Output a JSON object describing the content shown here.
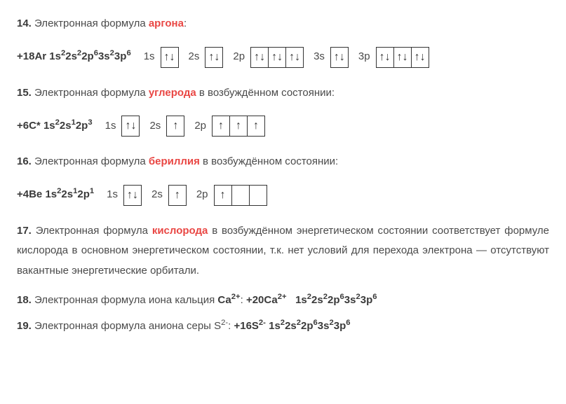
{
  "q14": {
    "num": "14.",
    "pre": " Электронная формула ",
    "hl": "аргона",
    "post": ":",
    "cfg_pre": "+18Ar 1s",
    "cfg_rest": [
      "2",
      "2s",
      "2",
      "2p",
      "6",
      "3s",
      "2",
      "3p",
      "6"
    ],
    "labels": [
      "1s",
      "2s",
      "2p",
      "3s",
      "3p"
    ],
    "orbitals": [
      [
        [
          "↑",
          "↓"
        ]
      ],
      [
        [
          "↑",
          "↓"
        ]
      ],
      [
        [
          "↑",
          "↓"
        ],
        [
          "↑",
          "↓"
        ],
        [
          "↑",
          "↓"
        ]
      ],
      [
        [
          "↑",
          "↓"
        ]
      ],
      [
        [
          "↑",
          "↓"
        ],
        [
          "↑",
          "↓"
        ],
        [
          "↑",
          "↓"
        ]
      ]
    ]
  },
  "q15": {
    "num": "15.",
    "pre": " Электронная формула ",
    "hl": "углерода",
    "post": " в возбуждённом состоянии:",
    "cfg_pre": "+6C* 1s",
    "cfg_rest": [
      "2",
      "2s",
      "1",
      "2p",
      "3"
    ],
    "labels": [
      "1s",
      "2s",
      "2p"
    ],
    "orbitals": [
      [
        [
          "↑",
          "↓"
        ]
      ],
      [
        [
          "↑",
          ""
        ]
      ],
      [
        [
          "↑",
          ""
        ],
        [
          "↑",
          ""
        ],
        [
          "↑",
          ""
        ]
      ]
    ]
  },
  "q16": {
    "num": "16.",
    "pre": " Электронная формула ",
    "hl": "бериллия",
    "post": " в возбуждённом состоянии:",
    "cfg_pre": "+4Be 1s",
    "cfg_rest": [
      "2",
      "2s",
      "1",
      "2p",
      "1"
    ],
    "labels": [
      "1s",
      "2s",
      "2p"
    ],
    "orbitals": [
      [
        [
          "↑",
          "↓"
        ]
      ],
      [
        [
          "↑",
          ""
        ]
      ],
      [
        [
          "↑",
          ""
        ],
        [
          "",
          ""
        ],
        [
          "",
          ""
        ]
      ]
    ]
  },
  "q17": {
    "num": "17.",
    "pre": " Электронная формула ",
    "hl": "кислорода",
    "post": " в возбуждённом энергетическом состоянии соответствует формуле кислорода в основном энергетическом состоянии, т.к. нет условий для перехода электрона — отсутствуют вакантные энергетические орбитали."
  },
  "q18": {
    "num": "18.",
    "pre": " Электронная формула иона кальция ",
    "ion_sym": "Са",
    "ion_chg": "2+",
    "mid": ": ",
    "cfg_sym": "+20Са",
    "cfg_chg": "2+",
    "gap": "   ",
    "cfg_pre": "1s",
    "cfg_rest": [
      "2",
      "2s",
      "2",
      "2p",
      "6",
      "3s",
      "2",
      "3p",
      "6"
    ]
  },
  "q19": {
    "num": "19.",
    "pre": " Электронная формула аниона серы S",
    "ion_chg": "2-",
    "mid": ": ",
    "cfg_sym": "+16S",
    "cfg_chg": "2-",
    "sp": " ",
    "cfg_pre": "1s",
    "cfg_rest": [
      "2",
      "2s",
      "2",
      "2p",
      "6",
      "3s",
      "2",
      "3p",
      "6"
    ]
  }
}
